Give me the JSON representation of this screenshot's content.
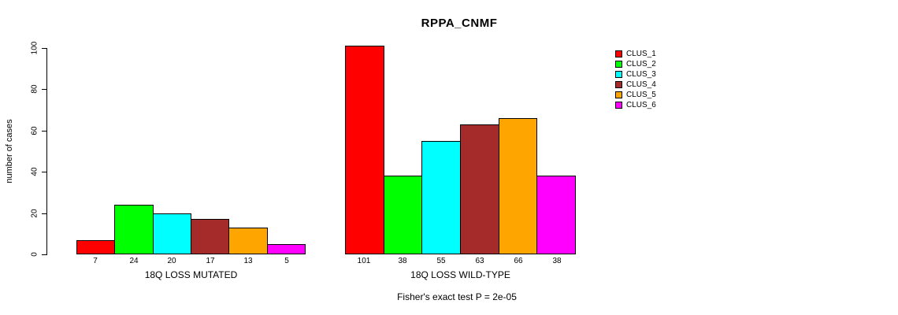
{
  "chart_data": {
    "type": "bar",
    "title": "RPPA_CNMF",
    "ylabel": "number of cases",
    "xlabel": "",
    "ylim": [
      0,
      100
    ],
    "yticks": [
      0,
      20,
      40,
      60,
      80,
      100
    ],
    "grid": false,
    "legend_position": "right",
    "bar_value_labels_shown": true,
    "annotation": "Fisher's exact test P = 2e-05",
    "categories": [
      "18Q LOSS MUTATED",
      "18Q LOSS WILD-TYPE"
    ],
    "series": [
      {
        "name": "CLUS_1",
        "color": "#FF0000",
        "values": [
          7,
          101
        ]
      },
      {
        "name": "CLUS_2",
        "color": "#00FF00",
        "values": [
          24,
          38
        ]
      },
      {
        "name": "CLUS_3",
        "color": "#00FFFF",
        "values": [
          20,
          55
        ]
      },
      {
        "name": "CLUS_4",
        "color": "#A52A2A",
        "values": [
          17,
          63
        ]
      },
      {
        "name": "CLUS_5",
        "color": "#FFA500",
        "values": [
          13,
          66
        ]
      },
      {
        "name": "CLUS_6",
        "color": "#FF00FF",
        "values": [
          5,
          38
        ]
      }
    ]
  }
}
